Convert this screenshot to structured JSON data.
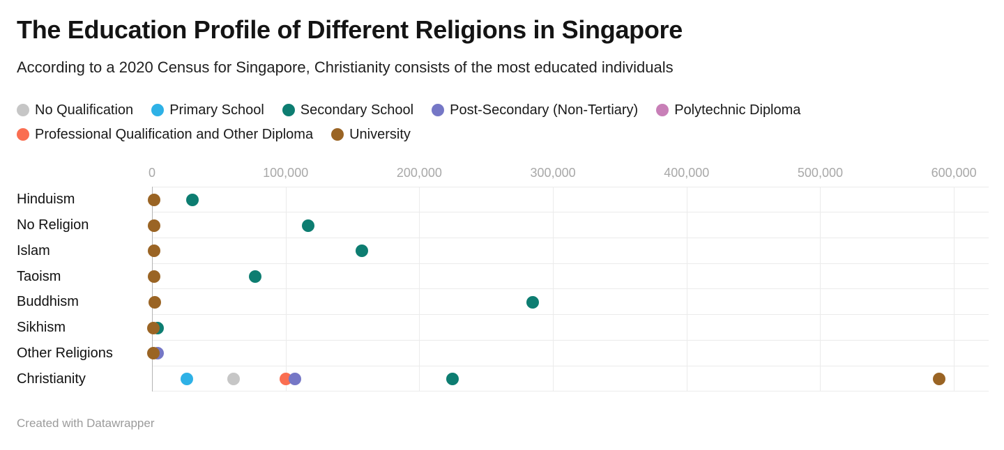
{
  "header": {
    "title": "The Education Profile of Different Religions in Singapore",
    "subtitle": "According to a 2020 Census for Singapore, Christianity consists of the most educated individuals"
  },
  "footer": {
    "credit": "Created with Datawrapper"
  },
  "chart_data": {
    "type": "scatter",
    "variant": "horizontal-dot-plot",
    "title": "The Education Profile of Different Religions in Singapore",
    "subtitle": "According to a 2020 Census for Singapore, Christianity consists of the most educated individuals",
    "legend_position": "top",
    "grid": true,
    "x_axis": {
      "min": 0,
      "max": 626000,
      "ticks": [
        0,
        100000,
        200000,
        300000,
        400000,
        500000,
        600000
      ],
      "tick_labels": [
        "0",
        "100,000",
        "200,000",
        "300,000",
        "400,000",
        "500,000",
        "600,000"
      ]
    },
    "series": [
      {
        "name": "No Qualification",
        "color": "#c6c6c6"
      },
      {
        "name": "Primary School",
        "color": "#2eb1e6"
      },
      {
        "name": "Secondary School",
        "color": "#0d7d71"
      },
      {
        "name": "Post-Secondary (Non-Tertiary)",
        "color": "#7577c6"
      },
      {
        "name": "Polytechnic Diploma",
        "color": "#c87fb7"
      },
      {
        "name": "Professional Qualification and Other Diploma",
        "color": "#fa6e51"
      },
      {
        "name": "University",
        "color": "#9a6424"
      }
    ],
    "rows": [
      {
        "category": "Hinduism",
        "points": [
          {
            "series": "Secondary School",
            "value": 30000
          },
          {
            "series": "University",
            "value": 1500
          }
        ]
      },
      {
        "category": "No Religion",
        "points": [
          {
            "series": "Secondary School",
            "value": 117000
          },
          {
            "series": "University",
            "value": 1500
          }
        ]
      },
      {
        "category": "Islam",
        "points": [
          {
            "series": "Secondary School",
            "value": 157000
          },
          {
            "series": "University",
            "value": 1500
          }
        ]
      },
      {
        "category": "Taoism",
        "points": [
          {
            "series": "Secondary School",
            "value": 77000
          },
          {
            "series": "University",
            "value": 1500
          }
        ]
      },
      {
        "category": "Buddhism",
        "points": [
          {
            "series": "Secondary School",
            "value": 285000
          },
          {
            "series": "University",
            "value": 2000
          }
        ]
      },
      {
        "category": "Sikhism",
        "points": [
          {
            "series": "Secondary School",
            "value": 4000
          },
          {
            "series": "University",
            "value": 1200
          }
        ]
      },
      {
        "category": "Other Religions",
        "points": [
          {
            "series": "Post-Secondary (Non-Tertiary)",
            "value": 4000
          },
          {
            "series": "University",
            "value": 1200
          }
        ]
      },
      {
        "category": "Christianity",
        "points": [
          {
            "series": "Primary School",
            "value": 26000
          },
          {
            "series": "No Qualification",
            "value": 61000
          },
          {
            "series": "Professional Qualification and Other Diploma",
            "value": 100000
          },
          {
            "series": "Post-Secondary (Non-Tertiary)",
            "value": 107000
          },
          {
            "series": "Secondary School",
            "value": 225000
          },
          {
            "series": "University",
            "value": 589000
          }
        ]
      }
    ]
  }
}
